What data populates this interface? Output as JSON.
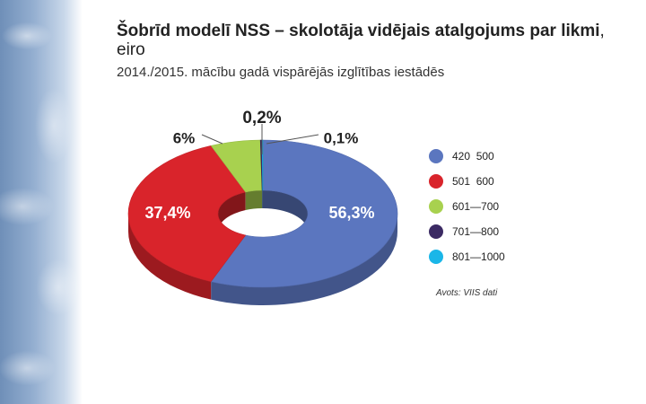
{
  "title": {
    "main": "Šobrīd modelī NSS – skolotāja vidējais atalgojums par likmi",
    "suffix": ", eiro"
  },
  "subtitle": "2014./2015. mācību gadā vispārējās izglītības iestādēs",
  "source": "Avots: VIIS dati",
  "chart_data": {
    "type": "pie",
    "style": "3d-donut",
    "slices": [
      {
        "category": "420  500",
        "value": 56.3,
        "label": "56,3%",
        "color": "#5b76bf"
      },
      {
        "category": "501  600",
        "value": 37.4,
        "label": "37,4%",
        "color": "#d9242b"
      },
      {
        "category": "601—700",
        "value": 6.0,
        "label": "6%",
        "color": "#a8d14f"
      },
      {
        "category": "701—800",
        "value": 0.2,
        "label": "0,2%",
        "color": "#3b2a63"
      },
      {
        "category": "801—1000",
        "value": 0.1,
        "label": "0,1%",
        "color": "#1ab6e8"
      }
    ],
    "legend_placement": "right"
  }
}
